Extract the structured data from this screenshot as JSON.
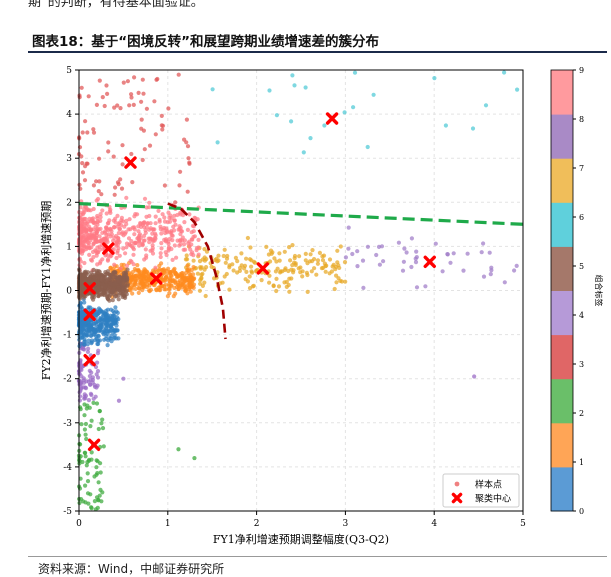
{
  "header": {
    "top_text": "期”的判断，有待基本面验证。",
    "figure_title": "图表18：基于“困境反转”和展望跨期业绩增速差的簇分布"
  },
  "footer": {
    "source": "资料来源：Wind，中邮证券研究所"
  },
  "chart_data": {
    "type": "scatter",
    "title": "",
    "xlabel": "FY1净利增速预期调整幅度(Q3-Q2)",
    "ylabel": "FY2净利增速预期-FY1净利增速预期",
    "xlim": [
      0,
      5
    ],
    "ylim": [
      -5,
      5
    ],
    "xticks": [
      "0",
      "1",
      "2",
      "3",
      "4",
      "5"
    ],
    "yticks": [
      "-5",
      "-4",
      "-3",
      "-2",
      "-1",
      "0",
      "1",
      "2",
      "3",
      "4",
      "5"
    ],
    "grid": true,
    "legend": {
      "position": "bottom-right",
      "entries": [
        {
          "label": "样本点",
          "marker": "dot",
          "color": "#f08080"
        },
        {
          "label": "聚类中心",
          "marker": "x",
          "color": "#ff0000"
        }
      ]
    },
    "colorbar": {
      "label": "组合标签",
      "ticks": [
        "0",
        "1",
        "2",
        "3",
        "4",
        "5",
        "6",
        "7",
        "8",
        "9"
      ],
      "colors": [
        "#5b9bd5",
        "#ffa556",
        "#6abf69",
        "#e06666",
        "#b69ad8",
        "#a5786a",
        "#5fd0dc",
        "#f0be5a",
        "#a98ac6",
        "#ff9a9e"
      ]
    },
    "clusters": [
      {
        "label": 0,
        "color": "#2f80c2",
        "x": [
          0.0,
          0.45
        ],
        "y": [
          -1.3,
          -0.2
        ],
        "n": 380
      },
      {
        "label": 1,
        "color": "#ff8a1f",
        "x": [
          0.35,
          1.3
        ],
        "y": [
          -0.15,
          0.65
        ],
        "n": 420
      },
      {
        "label": 2,
        "color": "#3ca93c",
        "x": [
          0.0,
          0.28
        ],
        "y": [
          -5.0,
          -2.5
        ],
        "n": 80
      },
      {
        "label": 3,
        "color": "#e05555",
        "x": [
          0.0,
          1.3
        ],
        "y": [
          2.0,
          4.9
        ],
        "n": 90
      },
      {
        "label": 4,
        "color": "#9b6cc6",
        "x": [
          0.0,
          0.22
        ],
        "y": [
          -2.6,
          -1.2
        ],
        "n": 90
      },
      {
        "label": 5,
        "color": "#8b5e4e",
        "x": [
          0.0,
          0.55
        ],
        "y": [
          -0.25,
          0.5
        ],
        "n": 650
      },
      {
        "label": 6,
        "color": "#4ec9d6",
        "x": [
          1.4,
          5.0
        ],
        "y": [
          3.0,
          4.95
        ],
        "n": 22
      },
      {
        "label": 7,
        "color": "#e8a824",
        "x": [
          1.2,
          3.0
        ],
        "y": [
          -0.2,
          1.3
        ],
        "n": 200
      },
      {
        "label": 8,
        "color": "#a07cc8",
        "x": [
          3.0,
          5.0
        ],
        "y": [
          -0.1,
          1.6
        ],
        "n": 45
      },
      {
        "label": 9,
        "color": "#ff7a85",
        "x": [
          0.0,
          1.35
        ],
        "y": [
          0.4,
          2.1
        ],
        "n": 520
      }
    ],
    "outliers": [
      {
        "x": 1.12,
        "y": -3.6,
        "color": "#3ca93c"
      },
      {
        "x": 1.3,
        "y": -3.8,
        "color": "#3ca93c"
      },
      {
        "x": 4.45,
        "y": -1.95,
        "color": "#9b6cc6"
      },
      {
        "x": 0.45,
        "y": -2.5,
        "color": "#9b6cc6"
      },
      {
        "x": 0.5,
        "y": -2.0,
        "color": "#9b6cc6"
      }
    ],
    "centers": [
      {
        "x": 0.12,
        "y": 0.05
      },
      {
        "x": 0.12,
        "y": -0.55
      },
      {
        "x": 0.12,
        "y": -1.58
      },
      {
        "x": 0.17,
        "y": -3.5
      },
      {
        "x": 0.33,
        "y": 0.95
      },
      {
        "x": 0.58,
        "y": 2.9
      },
      {
        "x": 0.87,
        "y": 0.27
      },
      {
        "x": 2.07,
        "y": 0.5
      },
      {
        "x": 2.85,
        "y": 3.9
      },
      {
        "x": 3.95,
        "y": 0.65
      }
    ],
    "lines": [
      {
        "name": "",
        "style": "dashed",
        "color": "#1faa4a",
        "x": [
          0.0,
          5.0
        ],
        "y": [
          1.97,
          1.5
        ]
      },
      {
        "name": "",
        "style": "dashed",
        "color": "#a00000",
        "x": [
          1.0,
          1.15,
          1.3,
          1.45,
          1.55,
          1.62,
          1.65
        ],
        "y": [
          1.97,
          1.85,
          1.55,
          1.0,
          0.3,
          -0.4,
          -1.1
        ]
      }
    ]
  }
}
